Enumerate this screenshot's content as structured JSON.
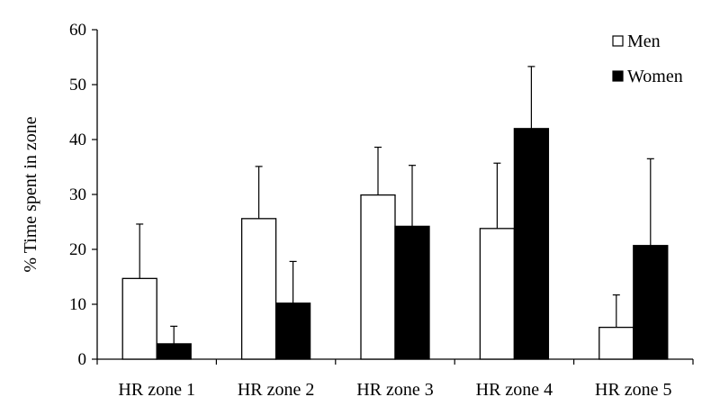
{
  "chart_data": {
    "type": "bar",
    "title": "",
    "xlabel": "",
    "ylabel": "% Time spent in zone",
    "ylim": [
      0,
      60
    ],
    "yticks": [
      0,
      10,
      20,
      30,
      40,
      50,
      60
    ],
    "categories": [
      "HR zone 1",
      "HR zone 2",
      "HR zone 3",
      "HR zone 4",
      "HR zone 5"
    ],
    "series": [
      {
        "name": "Men",
        "color": "#ffffff",
        "values": [
          14.7,
          25.6,
          29.9,
          23.8,
          5.8
        ],
        "error_upper": [
          24.6,
          35.1,
          38.6,
          35.7,
          11.7
        ]
      },
      {
        "name": "Women",
        "color": "#000000",
        "values": [
          2.8,
          10.2,
          24.2,
          42.0,
          20.7
        ],
        "error_upper": [
          6.0,
          17.8,
          35.3,
          53.3,
          36.5
        ]
      }
    ],
    "legend_position": "top-right",
    "grid": false
  }
}
